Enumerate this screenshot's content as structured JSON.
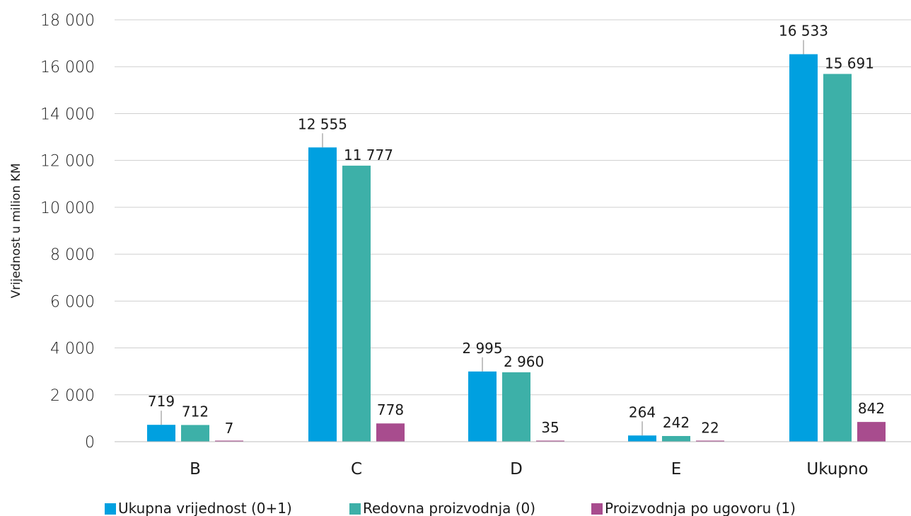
{
  "chart_data": {
    "type": "bar",
    "categories": [
      "B",
      "C",
      "D",
      "E",
      "Ukupno"
    ],
    "series": [
      {
        "name": "Ukupna vrijednost (0+1)",
        "color": "#00A0E0",
        "values": [
          719,
          12555,
          2995,
          264,
          16533
        ],
        "labels": [
          "719",
          "12 555",
          "2 995",
          "264",
          "16 533"
        ]
      },
      {
        "name": "Redovna proizvodnja (0)",
        "color": "#3DB0A8",
        "values": [
          712,
          11777,
          2960,
          242,
          15691
        ],
        "labels": [
          "712",
          "11 777",
          "2 960",
          "242",
          "15 691"
        ]
      },
      {
        "name": "Proizvodnja po ugovoru (1)",
        "color": "#A84C8E",
        "values": [
          7,
          778,
          35,
          22,
          842
        ],
        "labels": [
          "7",
          "778",
          "35",
          "22",
          "842"
        ]
      }
    ],
    "ylabel": "Vrijednost u milion KM",
    "ylim": [
      0,
      18000
    ],
    "yticks": [
      0,
      2000,
      4000,
      6000,
      8000,
      10000,
      12000,
      14000,
      16000,
      18000
    ],
    "ytick_labels": [
      "0",
      "2 000",
      "4 000",
      "6 000",
      "8 000",
      "10 000",
      "12 000",
      "14 000",
      "16 000",
      "18 000"
    ],
    "grid": true,
    "legend_position": "bottom"
  }
}
